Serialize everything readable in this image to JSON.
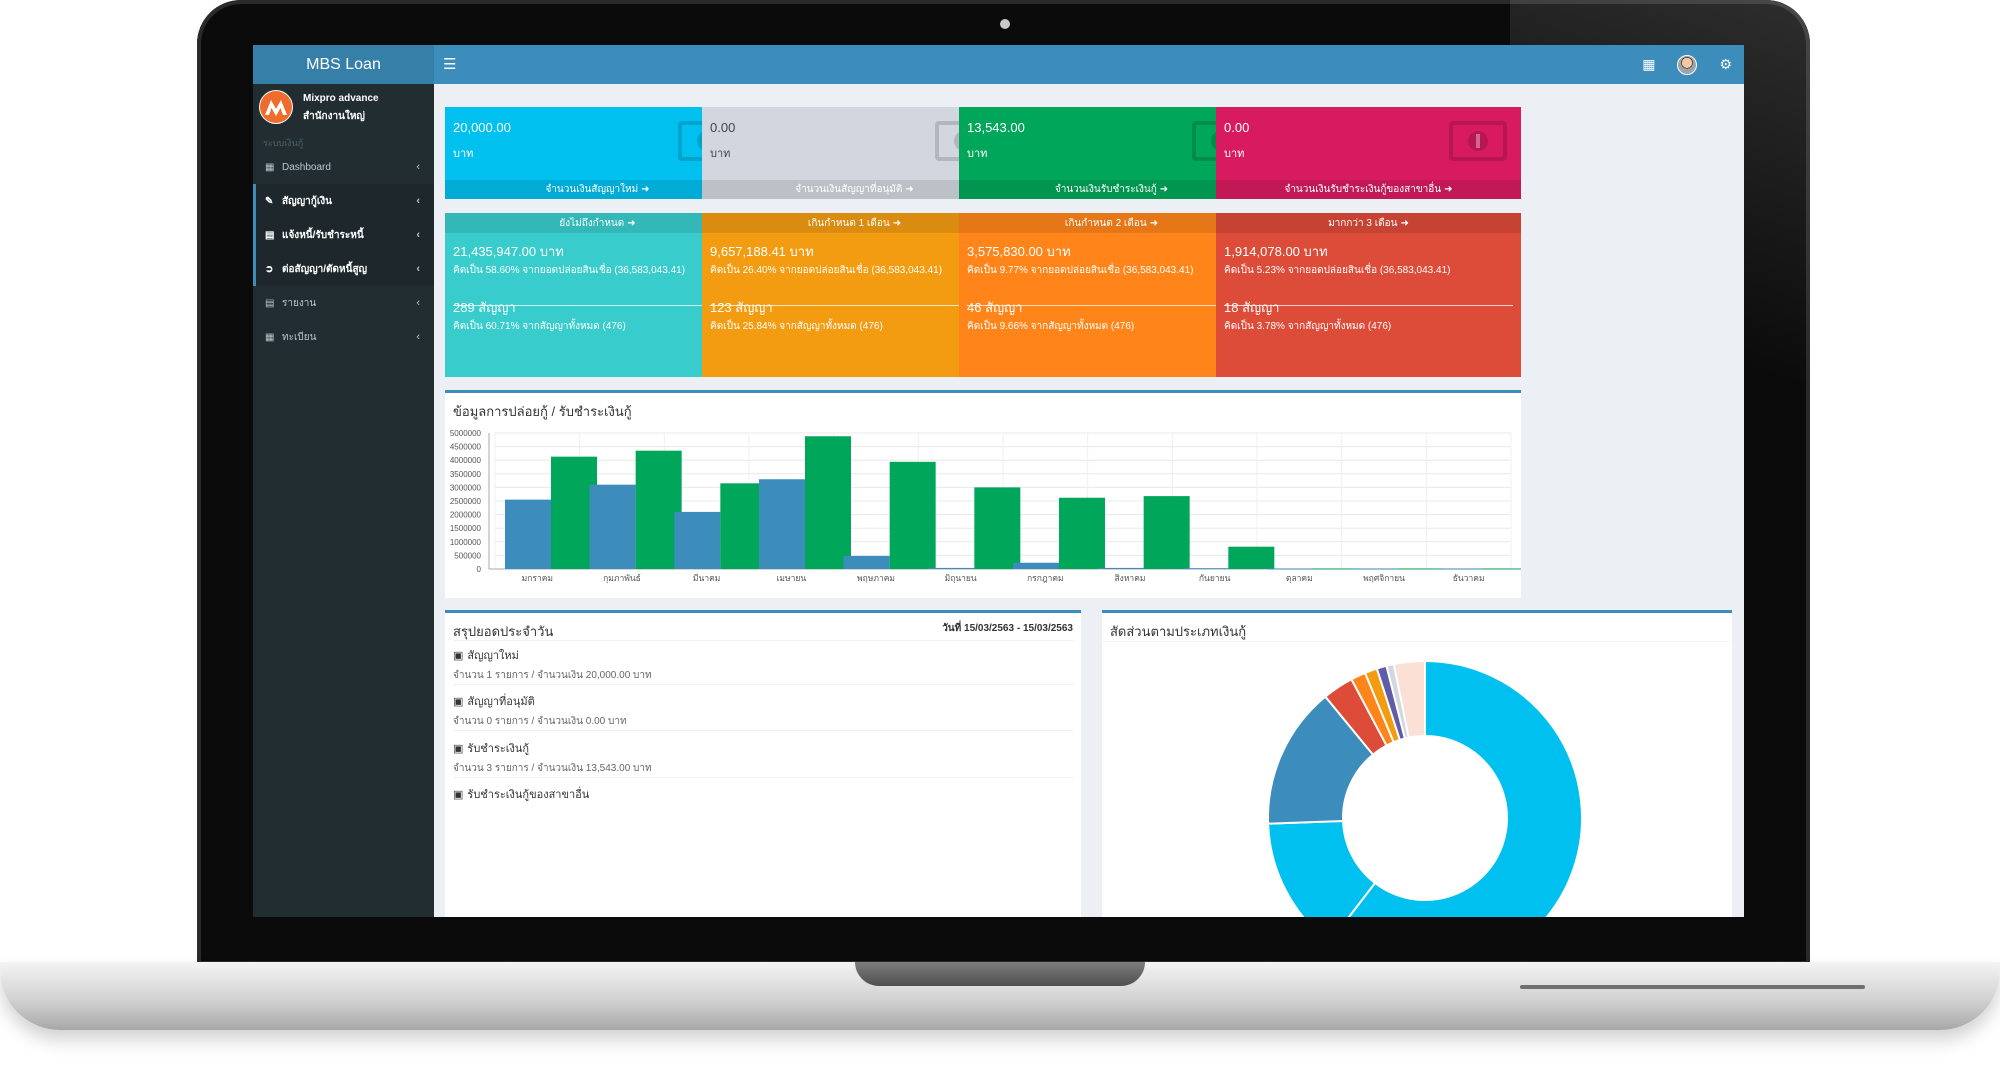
{
  "app": {
    "title": "MBS Loan"
  },
  "user": {
    "name": "Mixpro advance",
    "branch": "สำนักงานใหญ่"
  },
  "sidebar": {
    "header": "ระบบเงินกู้",
    "items": [
      {
        "label": "Dashboard",
        "icon": "dashboard-icon",
        "active": false
      },
      {
        "label": "สัญญากู้เงิน",
        "icon": "edit-icon",
        "active": true
      },
      {
        "label": "แจ้งหนี้/รับชำระหนี้",
        "icon": "file-icon",
        "active": true
      },
      {
        "label": "ต่อสัญญา/ตัดหนี้สูญ",
        "icon": "share-icon",
        "active": true
      },
      {
        "label": "รายงาน",
        "icon": "file-icon",
        "active": false
      },
      {
        "label": "ทะเบียน",
        "icon": "table-icon",
        "active": false
      }
    ]
  },
  "summary_boxes": [
    {
      "amount": "20,000.00",
      "unit": "บาท",
      "footer": "จำนวนเงินสัญญาใหม่",
      "color": "#00c0ef"
    },
    {
      "amount": "0.00",
      "unit": "บาท",
      "footer": "จำนวนเงินสัญญาที่อนุมัติ",
      "color": "#d2d6de"
    },
    {
      "amount": "13,543.00",
      "unit": "บาท",
      "footer": "จำนวนเงินรับชำระเงินกู้",
      "color": "#00a65a"
    },
    {
      "amount": "0.00",
      "unit": "บาท",
      "footer": "จำนวนเงินรับชำระเงินกู้ของสาขาอื่น",
      "color": "#d81b60"
    }
  ],
  "aging_boxes": [
    {
      "header": "ยังไม่ถึงกำหนด",
      "amount": "21,435,947.00 บาท",
      "amount_pct": "คิดเป็น 58.60% จากยอดปล่อยสินเชื่อ (36,583,043.41)",
      "contracts": "289 สัญญา",
      "contracts_pct": "คิดเป็น 60.71% จากสัญญาทั้งหมด (476)",
      "color": "#39cccc"
    },
    {
      "header": "เกินกำหนด 1 เดือน",
      "amount": "9,657,188.41 บาท",
      "amount_pct": "คิดเป็น 26.40% จากยอดปล่อยสินเชื่อ (36,583,043.41)",
      "contracts": "123 สัญญา",
      "contracts_pct": "คิดเป็น 25.84% จากสัญญาทั้งหมด (476)",
      "color": "#f39c12"
    },
    {
      "header": "เกินกำหนด 2 เดือน",
      "amount": "3,575,830.00 บาท",
      "amount_pct": "คิดเป็น 9.77% จากยอดปล่อยสินเชื่อ (36,583,043.41)",
      "contracts": "46 สัญญา",
      "contracts_pct": "คิดเป็น 9.66% จากสัญญาทั้งหมด (476)",
      "color": "#ff851b"
    },
    {
      "header": "มากกว่า 3 เดือน",
      "amount": "1,914,078.00 บาท",
      "amount_pct": "คิดเป็น 5.23% จากยอดปล่อยสินเชื่อ (36,583,043.41)",
      "contracts": "18 สัญญา",
      "contracts_pct": "คิดเป็น 3.78% จากสัญญาทั้งหมด (476)",
      "color": "#dd4b39"
    }
  ],
  "bar_panel": {
    "title": "ข้อมูลการปล่อยกู้ / รับชำระเงินกู้"
  },
  "daily_panel": {
    "title": "สรุปยอดประจำวัน",
    "date_range": "วันที่ 15/03/2563 - 15/03/2563",
    "items": [
      {
        "title": "สัญญาใหม่",
        "detail": "จำนวน 1 รายการ / จำนวนเงิน 20,000.00 บาท"
      },
      {
        "title": "สัญญาที่อนุมัติ",
        "detail": "จำนวน 0 รายการ / จำนวนเงิน 0.00 บาท"
      },
      {
        "title": "รับชำระเงินกู้",
        "detail": "จำนวน 3 รายการ / จำนวนเงิน 13,543.00 บาท"
      },
      {
        "title": "รับชำระเงินกู้ของสาขาอื่น",
        "detail": ""
      }
    ]
  },
  "pie_panel": {
    "title": "สัดส่วนตามประเภทเงินกู้"
  },
  "chart_data": [
    {
      "type": "bar",
      "categories": [
        "มกราคม",
        "กุมภาพันธ์",
        "มีนาคม",
        "เมษายน",
        "พฤษภาคม",
        "มิถุนายน",
        "กรกฎาคม",
        "สิงหาคม",
        "กันยายน",
        "ตุลาคม",
        "พฤศจิกายน",
        "ธันวาคม"
      ],
      "ylim": [
        0,
        5000000
      ],
      "yticks": [
        "5000000",
        "4500000",
        "4000000",
        "3500000",
        "3000000",
        "2500000",
        "2000000",
        "1500000",
        "1000000",
        "500000",
        "0"
      ],
      "grid": true,
      "series": [
        {
          "color": "#3c8dbc",
          "values": [
            2550000,
            3100000,
            2100000,
            3300000,
            480000,
            40000,
            230000,
            40000,
            30000,
            20000,
            20000,
            20000
          ]
        },
        {
          "color": "#00a65a",
          "values": [
            4130000,
            4350000,
            3150000,
            4880000,
            3940000,
            3000000,
            2620000,
            2680000,
            820000,
            20000,
            20000,
            20000
          ]
        }
      ]
    },
    {
      "type": "pie",
      "donut": true,
      "slices": [
        {
          "value": 47.5,
          "color": "#00c0ef"
        },
        {
          "value": 11.0,
          "color": "#00c0ef"
        },
        {
          "value": 11.5,
          "color": "#3c8dbc"
        },
        {
          "value": 2.5,
          "color": "#dd4b39"
        },
        {
          "value": 1.2,
          "color": "#ff851b"
        },
        {
          "value": 1.0,
          "color": "#f39c12"
        },
        {
          "value": 0.8,
          "color": "#605ca8"
        },
        {
          "value": 0.6,
          "color": "#d2d6de"
        },
        {
          "value": 2.5,
          "color": "#fbe0d6"
        }
      ]
    }
  ]
}
